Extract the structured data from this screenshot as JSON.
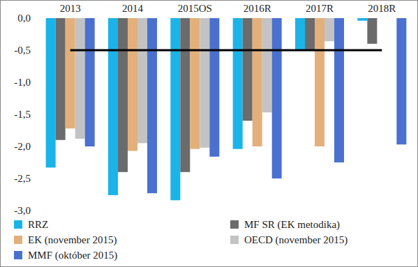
{
  "chart_data": {
    "type": "bar",
    "categories": [
      "2013",
      "2014",
      "2015OS",
      "2016R",
      "2017R",
      "2018R"
    ],
    "series": [
      {
        "name": "RRZ",
        "color": "#1ab4e8",
        "values": [
          -2.33,
          -2.76,
          -2.84,
          -2.04,
          -0.5,
          -0.04
        ]
      },
      {
        "name": "MF SR (EK metodika)",
        "color": "#6b6b6b",
        "values": [
          -1.9,
          -2.4,
          -2.4,
          -1.6,
          -0.5,
          -0.4
        ]
      },
      {
        "name": "EK (november 2015)",
        "color": "#e3b07c",
        "values": [
          -1.72,
          -2.07,
          -2.04,
          -2.0,
          -2.0,
          null
        ]
      },
      {
        "name": "OECD (november 2015)",
        "color": "#c3c3c3",
        "values": [
          -1.88,
          -1.95,
          -2.02,
          -1.47,
          -0.36,
          null
        ]
      },
      {
        "name": "MMF (október 2015)",
        "color": "#4a70d0",
        "values": [
          -2.0,
          -2.73,
          -2.16,
          -2.5,
          -2.25,
          -1.97
        ]
      }
    ],
    "hline": -0.5,
    "ylim": [
      -3,
      0
    ],
    "yticks": [
      {
        "value": 0,
        "label": "0,0"
      },
      {
        "value": -0.5,
        "label": "-0,5"
      },
      {
        "value": -1,
        "label": "-1,0"
      },
      {
        "value": -1.5,
        "label": "-1,5"
      },
      {
        "value": -2,
        "label": "-2,0"
      },
      {
        "value": -2.5,
        "label": "-2,5"
      },
      {
        "value": -3,
        "label": "-3,0"
      }
    ],
    "grid": false,
    "legend": "bottom"
  }
}
